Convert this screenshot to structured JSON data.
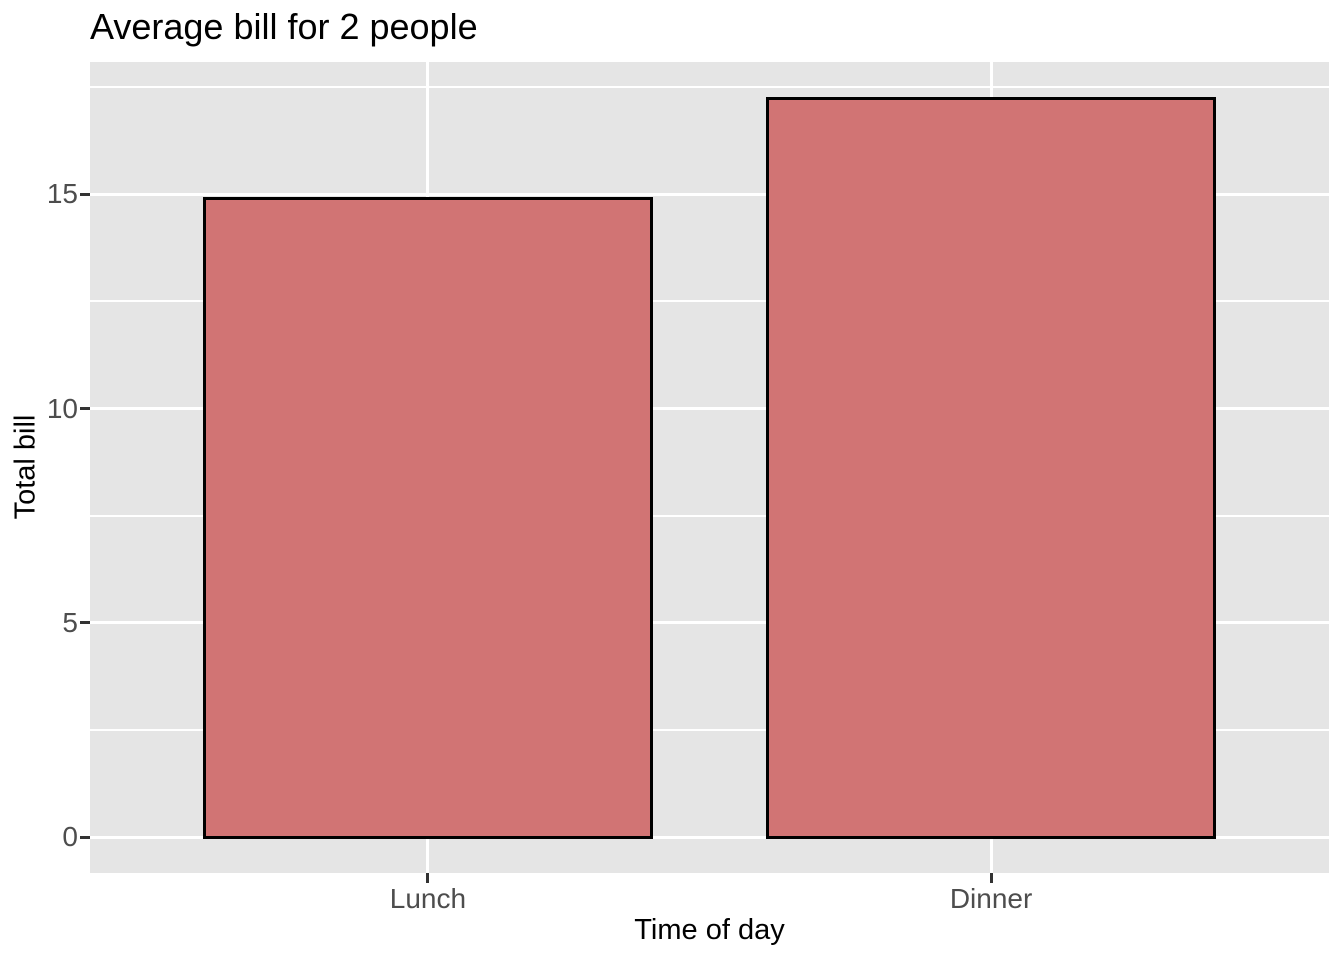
{
  "chart_data": {
    "type": "bar",
    "title": "Average bill for 2 people",
    "xlabel": "Time of day",
    "ylabel": "Total bill",
    "categories": [
      "Lunch",
      "Dinner"
    ],
    "values": [
      14.89,
      17.22
    ],
    "yticks": [
      0,
      5,
      10,
      15
    ],
    "ytick_labels": [
      "0",
      "5",
      "10",
      "15"
    ],
    "minor_yticks": [
      2.5,
      7.5,
      12.5,
      17.5
    ],
    "ylim": [
      -0.83,
      18.08
    ],
    "grid": "on",
    "legend_position": "none",
    "colors": {
      "bar_fill": "#D17474",
      "bar_stroke": "#000000",
      "panel_background": "#E5E5E5",
      "grid_color": "#FFFFFF",
      "tick_mark_color": "#333333",
      "tick_label_color": "#4D4D4D",
      "axis_title_color": "#000000",
      "title_color": "#000000",
      "figure_background": "#FFFFFF"
    }
  }
}
